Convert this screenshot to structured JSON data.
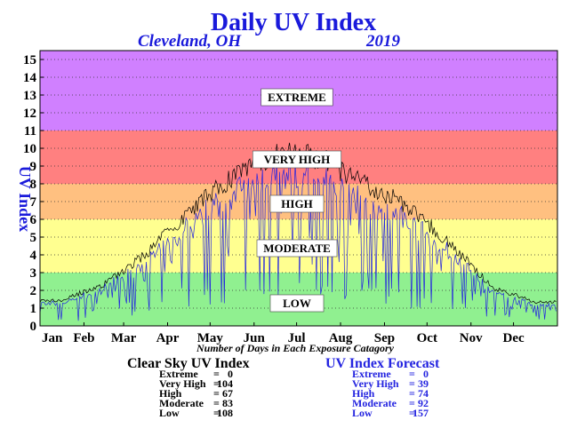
{
  "chart_data": {
    "type": "line",
    "title": "Daily UV Index",
    "location": "Cleveland, OH",
    "year": "2019",
    "ylabel": "UV Index",
    "xlabel": "Number of Days in Each Exposure Catagory",
    "ylim": [
      0,
      15
    ],
    "yticks": [
      0,
      1,
      2,
      3,
      4,
      5,
      6,
      7,
      8,
      9,
      10,
      11,
      12,
      13,
      14,
      15
    ],
    "months": [
      "Jan",
      "Feb",
      "Mar",
      "Apr",
      "May",
      "Jun",
      "Jul",
      "Aug",
      "Sep",
      "Oct",
      "Nov",
      "Dec"
    ],
    "bands": [
      {
        "label": "LOW",
        "from": 0,
        "to": 3,
        "color": "#90f090",
        "label_y": 1.3
      },
      {
        "label": "MODERATE",
        "from": 3,
        "to": 6,
        "color": "#ffff90",
        "label_y": 4.4
      },
      {
        "label": "HIGH",
        "from": 6,
        "to": 8,
        "color": "#ffc080",
        "label_y": 6.9
      },
      {
        "label": "VERY HIGH",
        "from": 8,
        "to": 11,
        "color": "#ff8080",
        "label_y": 9.4
      },
      {
        "label": "EXTREME",
        "from": 11,
        "to": 15.5,
        "color": "#d080ff",
        "label_y": 12.9
      }
    ],
    "series": [
      {
        "name": "Clear Sky UV Index",
        "color": "#000000",
        "monthly_envelope": [
          1.5,
          2.5,
          4.2,
          6.8,
          8.8,
          10.2,
          10.0,
          8.5,
          7.2,
          5.0,
          2.3,
          1.4
        ],
        "stats": [
          {
            "label": "Extreme",
            "sep": "=",
            "value": "0"
          },
          {
            "label": "Very High",
            "sep": "=",
            "value": "104"
          },
          {
            "label": "High",
            "sep": "=",
            "value": "67"
          },
          {
            "label": "Moderate",
            "sep": "=",
            "value": "83"
          },
          {
            "label": "Low",
            "sep": "=",
            "value": "108"
          }
        ]
      },
      {
        "name": "UV Index Forecast",
        "color": "#2424e0",
        "stats": [
          {
            "label": "Extreme",
            "sep": "=",
            "value": "0"
          },
          {
            "label": "Very High",
            "sep": "=",
            "value": "39"
          },
          {
            "label": "High",
            "sep": "=",
            "value": "74"
          },
          {
            "label": "Moderate",
            "sep": "=",
            "value": "92"
          },
          {
            "label": "Low",
            "sep": "=",
            "value": "157"
          }
        ]
      }
    ]
  }
}
